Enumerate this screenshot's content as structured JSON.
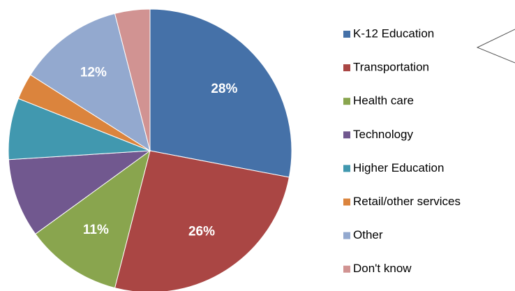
{
  "chart_data": {
    "type": "pie",
    "categories": [
      "K-12 Education",
      "Transportation",
      "Health care",
      "Technology",
      "Higher Education",
      "Retail/other services",
      "Other",
      "Don't know"
    ],
    "values": [
      28,
      26,
      11,
      9,
      7,
      3,
      12,
      4
    ],
    "value_labels": [
      "28%",
      "26%",
      "11%",
      null,
      null,
      null,
      "12%",
      null
    ],
    "colors": [
      "#4571a8",
      "#aa4644",
      "#89a54e",
      "#71588f",
      "#4198af",
      "#db843d",
      "#93a9cf",
      "#d19392"
    ],
    "legend": "right"
  }
}
